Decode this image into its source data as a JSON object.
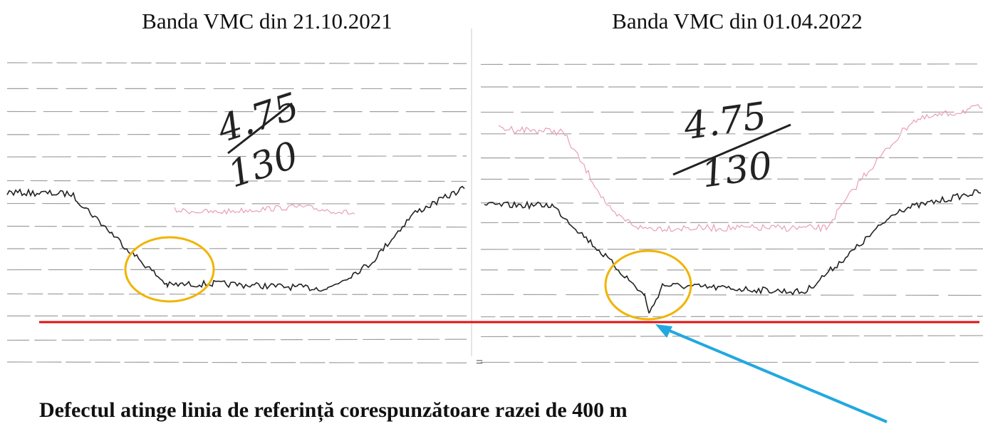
{
  "panels": [
    {
      "title": "Banda VMC din 21.10.2021",
      "note_top": "4.75",
      "note_bottom": "130"
    },
    {
      "title": "Banda VMC din 01.04.2022",
      "note_top": "4.75",
      "note_bottom": "130"
    }
  ],
  "caption": "Defectul atinge linia de referință corespunzătoare razei de 400 m"
}
